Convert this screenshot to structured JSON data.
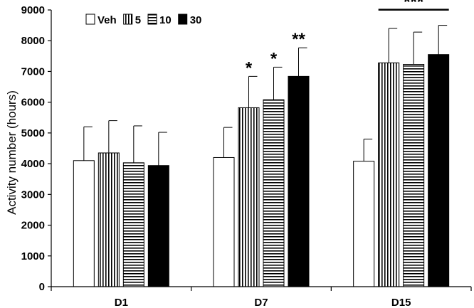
{
  "chart_data": {
    "type": "bar",
    "title": "",
    "xlabel": "",
    "ylabel": "Activity number (hours)",
    "ylim": [
      0,
      9000
    ],
    "yticks": [
      0,
      1000,
      2000,
      3000,
      4000,
      5000,
      6000,
      7000,
      8000,
      9000
    ],
    "categories": [
      "D1",
      "D7",
      "D15"
    ],
    "legend_position": "top-left",
    "series": [
      {
        "name": "Veh",
        "pattern": "open",
        "values": [
          4100,
          4200,
          4080
        ],
        "errors": [
          1100,
          980,
          720
        ]
      },
      {
        "name": "5",
        "pattern": "vertical-lines",
        "values": [
          4350,
          5820,
          7280
        ],
        "errors": [
          1050,
          1020,
          1120
        ]
      },
      {
        "name": "10",
        "pattern": "horizontal-lines",
        "values": [
          4030,
          6080,
          7230
        ],
        "errors": [
          1200,
          1060,
          1050
        ]
      },
      {
        "name": "30",
        "pattern": "solid",
        "values": [
          3940,
          6840,
          7550
        ],
        "errors": [
          1080,
          930,
          950
        ]
      }
    ],
    "annotations": [
      {
        "text": "*",
        "category": "D7",
        "series": "5"
      },
      {
        "text": "*",
        "category": "D7",
        "series": "10"
      },
      {
        "text": "**",
        "category": "D7",
        "series": "30"
      },
      {
        "text": "***",
        "category": "D15",
        "span": [
          "5",
          "30"
        ]
      }
    ]
  },
  "colors": {
    "axis": "#000000",
    "bar_fill": "#ffffff",
    "solid_fill": "#000000",
    "stroke": "#000000"
  }
}
